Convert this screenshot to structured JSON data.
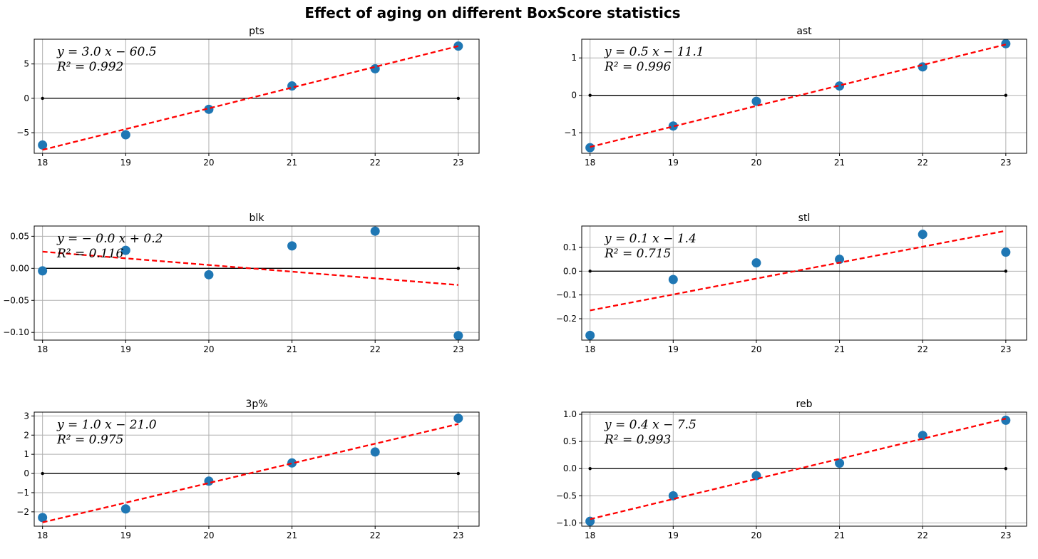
{
  "figure": {
    "title": "Effect of aging on different BoxScore statistics"
  },
  "colors": {
    "point": "#1f77b4",
    "fit": "#ff0000",
    "baseline": "#000000",
    "grid": "#b0b0b0"
  },
  "chart_data": [
    {
      "type": "scatter",
      "title": "pts",
      "x": [
        18,
        19,
        20,
        21,
        22,
        23
      ],
      "y": [
        -6.8,
        -5.3,
        -1.6,
        1.8,
        4.3,
        7.6
      ],
      "xlim": [
        17.9,
        23.25
      ],
      "ylim": [
        -8.0,
        8.6
      ],
      "yticks": [
        -5,
        0,
        5
      ],
      "ytick_labels": [
        "−5",
        "0",
        "5"
      ],
      "fit": {
        "slope": 3.0,
        "intercept": -60.5,
        "r2": 0.992,
        "y_start": -7.5,
        "y_end": 7.6
      },
      "annotation": {
        "eq": "y = 3.0 x − 60.5",
        "r2": "R² = 0.992"
      }
    },
    {
      "type": "scatter",
      "title": "ast",
      "x": [
        18,
        19,
        20,
        21,
        22,
        23
      ],
      "y": [
        -1.4,
        -0.82,
        -0.16,
        0.25,
        0.76,
        1.38
      ],
      "xlim": [
        17.9,
        23.25
      ],
      "ylim": [
        -1.55,
        1.5
      ],
      "yticks": [
        -1,
        0,
        1
      ],
      "ytick_labels": [
        "−1",
        "0",
        "1"
      ],
      "fit": {
        "slope": 0.5,
        "intercept": -11.1,
        "r2": 0.996,
        "y_start": -1.38,
        "y_end": 1.36
      },
      "annotation": {
        "eq": "y = 0.5 x − 11.1",
        "r2": "R² = 0.996"
      }
    },
    {
      "type": "scatter",
      "title": "blk",
      "x": [
        18,
        19,
        20,
        21,
        22,
        23
      ],
      "y": [
        -0.004,
        0.028,
        -0.01,
        0.035,
        0.058,
        -0.105
      ],
      "xlim": [
        17.9,
        23.25
      ],
      "ylim": [
        -0.112,
        0.066
      ],
      "yticks": [
        0.05,
        0.0,
        -0.05,
        -0.1
      ],
      "ytick_labels": [
        "0.05",
        "0.00",
        "−0.05",
        "−0.10"
      ],
      "fit": {
        "slope": -0.0,
        "intercept": 0.2,
        "r2": 0.116,
        "y_start": 0.026,
        "y_end": -0.026
      },
      "annotation": {
        "eq": "y = − 0.0 x + 0.2",
        "r2": "R² = 0.116"
      }
    },
    {
      "type": "scatter",
      "title": "stl",
      "x": [
        18,
        19,
        20,
        21,
        22,
        23
      ],
      "y": [
        -0.27,
        -0.035,
        0.035,
        0.05,
        0.155,
        0.08
      ],
      "xlim": [
        17.9,
        23.25
      ],
      "ylim": [
        -0.29,
        0.19
      ],
      "yticks": [
        0.1,
        0.0,
        -0.1,
        -0.2
      ],
      "ytick_labels": [
        "0.1",
        "0.0",
        "−0.1",
        "−0.2"
      ],
      "fit": {
        "slope": 0.1,
        "intercept": -1.4,
        "r2": 0.715,
        "y_start": -0.165,
        "y_end": 0.17
      },
      "annotation": {
        "eq": "y = 0.1 x − 1.4",
        "r2": "R² = 0.715"
      }
    },
    {
      "type": "scatter",
      "title": "3p%",
      "x": [
        18,
        19,
        20,
        21,
        22,
        23
      ],
      "y": [
        -2.3,
        -1.85,
        -0.4,
        0.55,
        1.12,
        2.88
      ],
      "xlim": [
        17.9,
        23.25
      ],
      "ylim": [
        -2.75,
        3.2
      ],
      "yticks": [
        3,
        2,
        1,
        0,
        -1,
        -2
      ],
      "ytick_labels": [
        "3",
        "2",
        "1",
        "0",
        "−1",
        "−2"
      ],
      "fit": {
        "slope": 1.0,
        "intercept": -21.0,
        "r2": 0.975,
        "y_start": -2.55,
        "y_end": 2.58
      },
      "annotation": {
        "eq": "y = 1.0 x − 21.0",
        "r2": "R² = 0.975"
      }
    },
    {
      "type": "scatter",
      "title": "reb",
      "x": [
        18,
        19,
        20,
        21,
        22,
        23
      ],
      "y": [
        -0.97,
        -0.5,
        -0.13,
        0.1,
        0.61,
        0.89
      ],
      "xlim": [
        17.9,
        23.25
      ],
      "ylim": [
        -1.06,
        1.04
      ],
      "yticks": [
        1.0,
        0.5,
        0.0,
        -0.5,
        -1.0
      ],
      "ytick_labels": [
        "1.0",
        "0.5",
        "0.0",
        "−0.5",
        "−1.0"
      ],
      "fit": {
        "slope": 0.4,
        "intercept": -7.5,
        "r2": 0.993,
        "y_start": -0.93,
        "y_end": 0.92
      },
      "annotation": {
        "eq": "y = 0.4 x − 7.5",
        "r2": "R² = 0.993"
      }
    }
  ]
}
